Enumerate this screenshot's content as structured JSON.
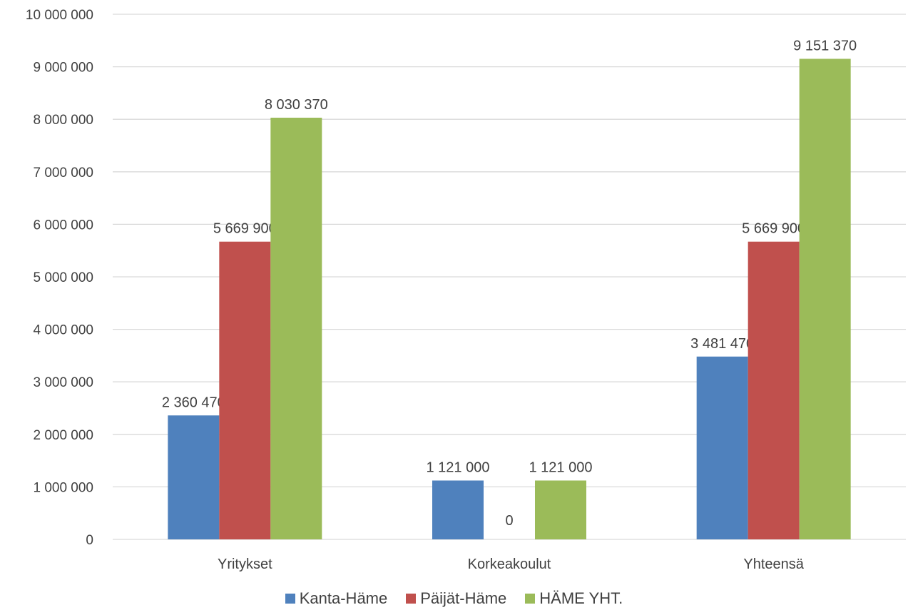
{
  "chart_data": {
    "type": "bar",
    "categories": [
      "Yritykset",
      "Korkeakoulut",
      "Yhteensä"
    ],
    "series": [
      {
        "name": "Kanta-Häme",
        "color": "#4f81bd",
        "values": [
          2360470,
          1121000,
          3481470
        ],
        "labels": [
          "2 360 470",
          "1 121 000",
          "3 481 470"
        ]
      },
      {
        "name": "Päijät-Häme",
        "color": "#c0504d",
        "values": [
          5669900,
          0,
          5669900
        ],
        "labels": [
          "5 669 900",
          "0",
          "5 669 900"
        ]
      },
      {
        "name": "HÄME YHT.",
        "color": "#9bbb59",
        "values": [
          8030370,
          1121000,
          9151370
        ],
        "labels": [
          "8 030 370",
          "1 121 000",
          "9 151 370"
        ]
      }
    ],
    "ylim": [
      0,
      10000000
    ],
    "yticks": [
      0,
      1000000,
      2000000,
      3000000,
      4000000,
      5000000,
      6000000,
      7000000,
      8000000,
      9000000,
      10000000
    ],
    "ytick_labels": [
      "0",
      "1 000 000",
      "2 000 000",
      "3 000 000",
      "4 000 000",
      "5 000 000",
      "6 000 000",
      "7 000 000",
      "8 000 000",
      "9 000 000",
      "10 000 000"
    ],
    "grid": true,
    "legend": "bottom"
  }
}
